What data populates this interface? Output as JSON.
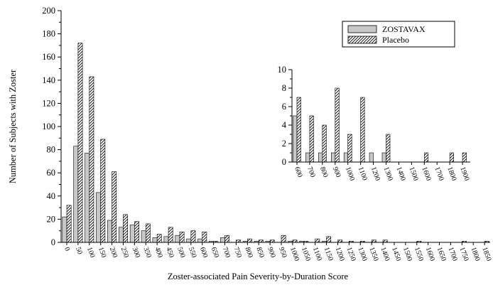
{
  "chart_data": [
    {
      "type": "bar",
      "title": "",
      "xlabel": "Zoster-associated Pain Severity-by-Duration Score",
      "ylabel": "Number of Subjects with Zoster",
      "ylim": [
        0,
        200
      ],
      "yticks": [
        0,
        20,
        40,
        60,
        80,
        100,
        120,
        140,
        160,
        180,
        200
      ],
      "categories": [
        "0",
        "50",
        "100",
        "150",
        "200",
        "250",
        "300",
        "350",
        "400",
        "450",
        "500",
        "550",
        "600",
        "650",
        "700",
        "750",
        "800",
        "850",
        "900",
        "950",
        "1000",
        "1050",
        "1100",
        "1150",
        "1200",
        "1250",
        "1300",
        "1350",
        "1400",
        "1450",
        "1500",
        "1550",
        "1600",
        "1650",
        "1700",
        "1750",
        "1800",
        "1850"
      ],
      "series": [
        {
          "name": "ZOSTAVAX",
          "pattern": "solid-gray",
          "values": [
            22,
            83,
            77,
            43,
            19,
            13,
            15,
            10,
            4,
            5,
            6,
            3,
            3,
            1,
            4,
            0,
            1,
            1,
            1,
            0,
            1,
            1,
            0,
            1,
            0,
            0,
            0,
            0,
            0,
            0,
            0,
            0,
            0,
            0,
            0,
            0,
            0,
            0
          ]
        },
        {
          "name": "Placebo",
          "pattern": "hatched",
          "values": [
            32,
            172,
            143,
            89,
            61,
            24,
            18,
            16,
            7,
            13,
            9,
            10,
            9,
            1,
            6,
            2,
            3,
            2,
            2,
            6,
            2,
            1,
            3,
            5,
            2,
            1,
            1,
            2,
            2,
            0,
            0,
            1,
            0,
            0,
            0,
            1,
            0,
            1
          ]
        }
      ],
      "legend": {
        "placement": "top-right",
        "entries": [
          "ZOSTAVAX",
          "Placebo"
        ]
      },
      "grid": false
    },
    {
      "type": "bar",
      "title": "",
      "ylim": [
        0,
        10
      ],
      "yticks": [
        0,
        2,
        4,
        6,
        8,
        10
      ],
      "categories": [
        "600",
        "700",
        "800",
        "900",
        "1000",
        "1100",
        "1200",
        "1300",
        "1400",
        "1500",
        "1600",
        "1700",
        "1800",
        "1900"
      ],
      "series": [
        {
          "name": "ZOSTAVAX",
          "values": [
            5,
            1,
            1,
            1,
            1,
            0,
            1,
            1,
            0,
            0,
            0,
            0,
            0,
            0
          ]
        },
        {
          "name": "Placebo",
          "values": [
            7,
            5,
            4,
            8,
            3,
            7,
            0,
            3,
            0,
            0,
            1,
            0,
            1,
            1
          ]
        }
      ],
      "grid": false
    }
  ],
  "colors": {
    "zostavax_fill": "#c8c8c8",
    "placebo_hatch": "#000000",
    "axis": "#000000"
  }
}
